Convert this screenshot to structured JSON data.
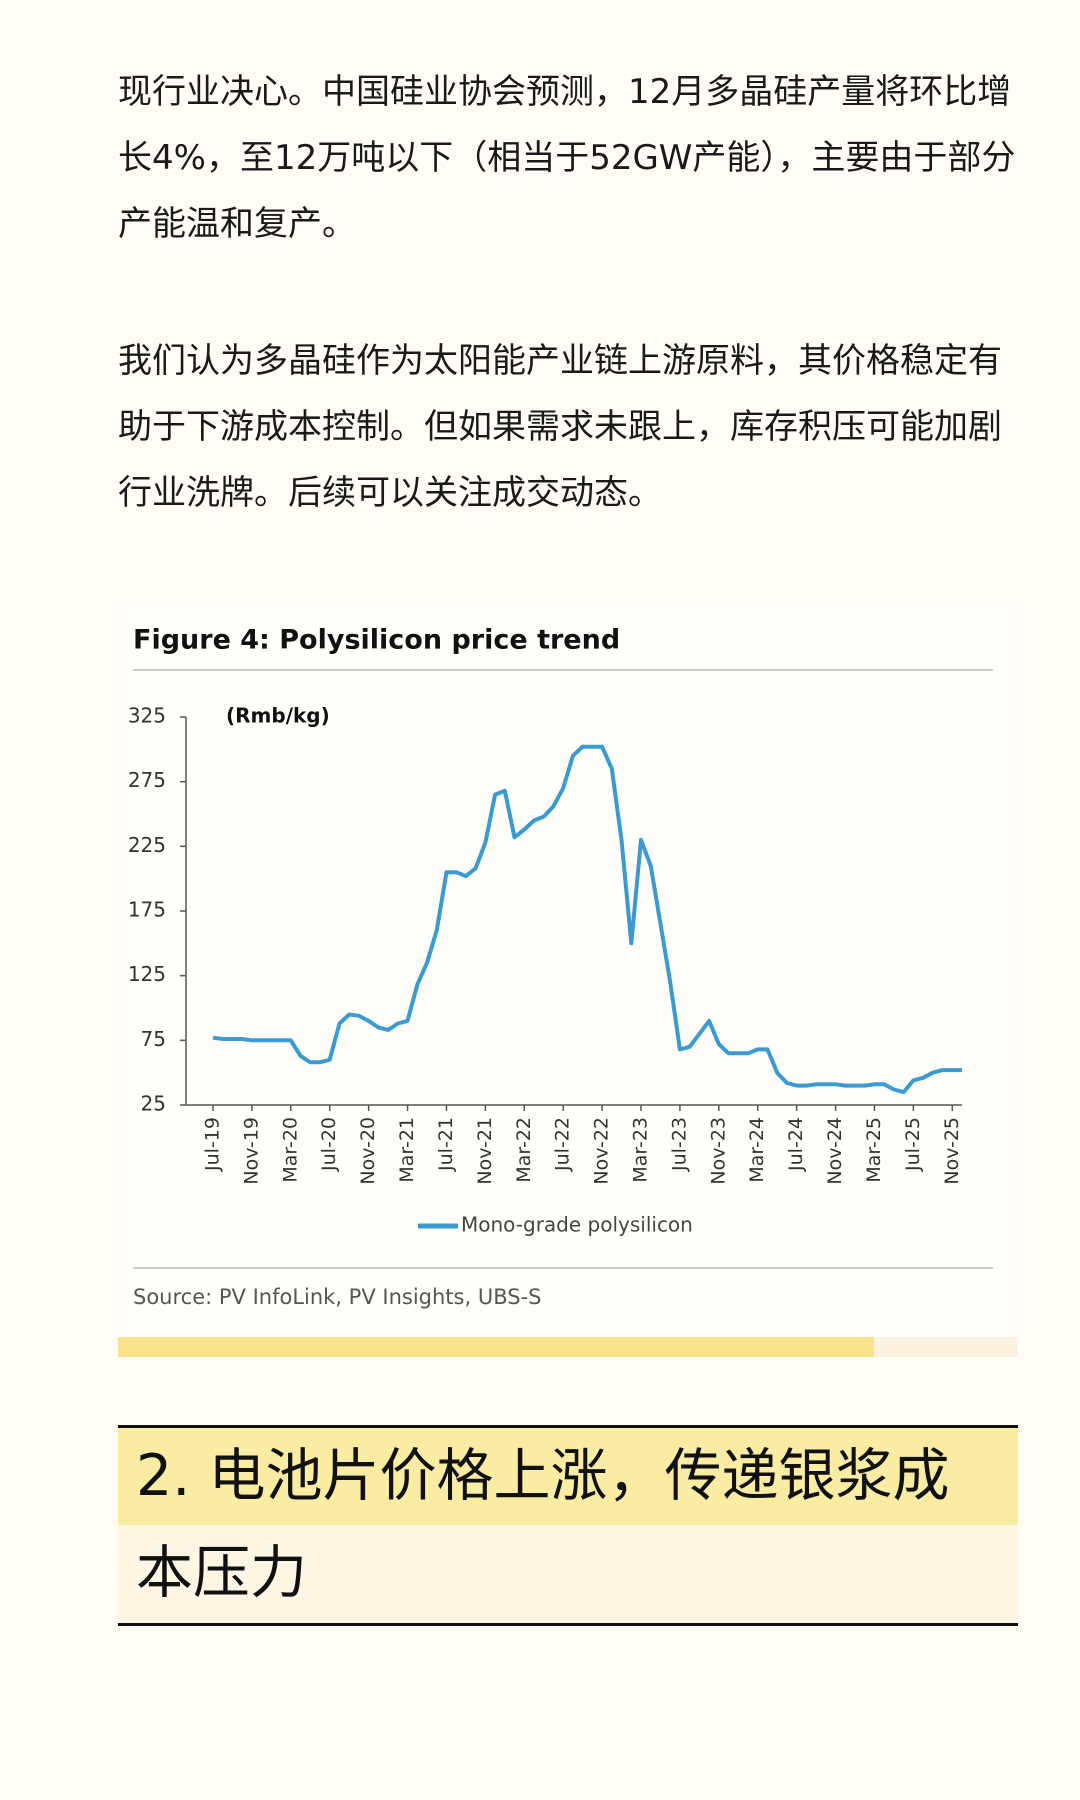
{
  "paragraphs": [
    "现行业决心。中国硅业协会预测，12月多晶硅产量将环比增长4%，至12万吨以下（相当于52GW产能），主要由于部分产能温和复产。",
    "我们认为多晶硅作为太阳能产业链上游原料，其价格稳定有助于下游成本控制。但如果需求未跟上，库存积压可能加剧行业洗牌。后续可以关注成交动态。"
  ],
  "chart_data": {
    "type": "line",
    "title": "Figure 4: Polysilicon price trend",
    "y_label": "(Rmb/kg)",
    "source": "Source: PV InfoLink, PV Insights, UBS-S",
    "categories": [
      "Jul-19",
      null,
      null,
      null,
      "Nov-19",
      null,
      null,
      null,
      "Mar-20",
      null,
      null,
      null,
      "Jul-20",
      null,
      null,
      null,
      "Nov-20",
      null,
      null,
      null,
      "Mar-21",
      null,
      null,
      null,
      "Jul-21",
      null,
      null,
      null,
      "Nov-21",
      null,
      null,
      null,
      "Mar-22",
      null,
      null,
      null,
      "Jul-22",
      null,
      null,
      null,
      "Nov-22",
      null,
      null,
      null,
      "Mar-23",
      null,
      null,
      null,
      "Jul-23",
      null,
      null,
      null,
      "Nov-23",
      null,
      null,
      null,
      "Mar-24",
      null,
      null,
      null,
      "Jul-24",
      null,
      null,
      null,
      "Nov-24",
      null,
      null,
      null,
      "Mar-25",
      null,
      null,
      null,
      "Jul-25",
      null,
      null,
      null,
      "Nov-25",
      null
    ],
    "series": [
      {
        "name": "Mono-grade polysilicon",
        "color": "#3a9ad1",
        "values": [
          77,
          76,
          76,
          76,
          75,
          75,
          75,
          75,
          75,
          63,
          58,
          58,
          60,
          88,
          95,
          94,
          90,
          85,
          83,
          88,
          90,
          118,
          135,
          160,
          205,
          205,
          202,
          208,
          228,
          265,
          268,
          232,
          238,
          245,
          248,
          256,
          270,
          295,
          302,
          302,
          302,
          285,
          230,
          150,
          230,
          210,
          165,
          120,
          68,
          70,
          80,
          90,
          72,
          65,
          65,
          65,
          68,
          68,
          50,
          42,
          40,
          40,
          41,
          41,
          41,
          40,
          40,
          40,
          41,
          41,
          37,
          35,
          44,
          46,
          50,
          52,
          52,
          52
        ]
      }
    ],
    "ylim": [
      25,
      325
    ],
    "yticks": [
      25,
      75,
      125,
      175,
      225,
      275,
      325
    ]
  },
  "section_heading": "2. 电池片价格上涨，传递银浆成本压力"
}
